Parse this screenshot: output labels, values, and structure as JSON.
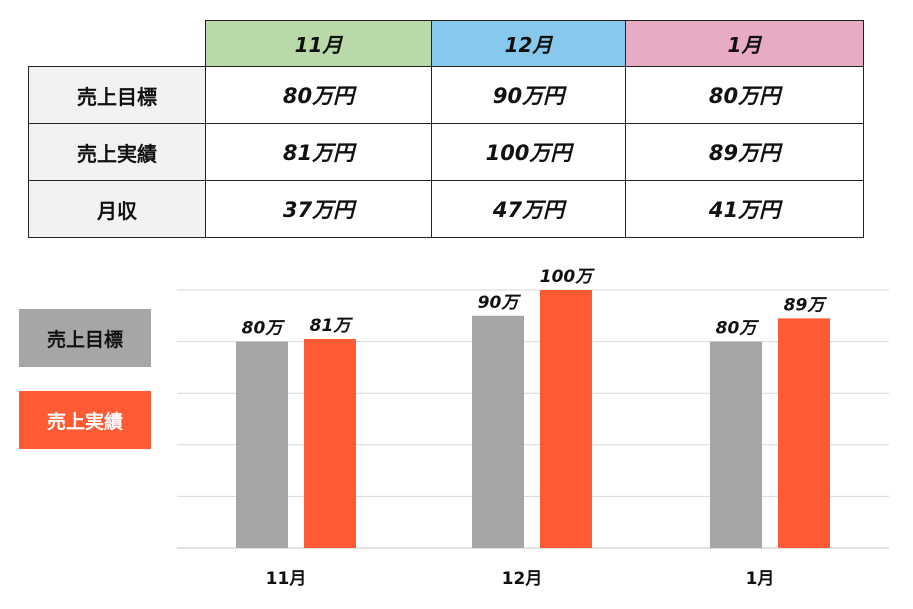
{
  "table": {
    "headers": [
      {
        "label": "11月",
        "color": "#b9d9a9"
      },
      {
        "label": "12月",
        "color": "#86c9ec"
      },
      {
        "label": "1月",
        "color": "#e7abc4"
      }
    ],
    "rows": [
      {
        "label": "売上目標",
        "values": [
          "80万円",
          "90万円",
          "80万円"
        ]
      },
      {
        "label": "売上実績",
        "values": [
          "81万円",
          "100万円",
          "89万円"
        ]
      },
      {
        "label": "月収",
        "values": [
          "37万円",
          "47万円",
          "41万円"
        ]
      }
    ]
  },
  "legend": [
    {
      "label": "売上目標",
      "color": "#a6a6a6"
    },
    {
      "label": "売上実績",
      "color": "#fe5a33"
    }
  ],
  "chart_data": {
    "type": "bar",
    "categories": [
      "11月",
      "12月",
      "1月"
    ],
    "series": [
      {
        "name": "売上目標",
        "color": "#a6a6a6",
        "values": [
          80,
          90,
          80
        ],
        "labels": [
          "80万",
          "90万",
          "80万"
        ]
      },
      {
        "name": "売上実績",
        "color": "#fe5a33",
        "values": [
          81,
          100,
          89
        ],
        "labels": [
          "81万",
          "100万",
          "89万"
        ]
      }
    ],
    "ylim": [
      0,
      100
    ],
    "grid": true,
    "legend_position": "left"
  }
}
